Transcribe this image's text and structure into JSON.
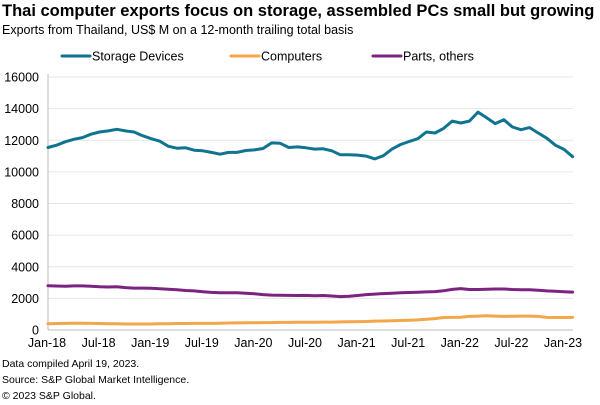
{
  "chart_data": {
    "type": "line",
    "title": "Thai computer exports focus on storage, assembled PCs small but growing",
    "subtitle": "Exports from Thailand, US$ M on a 12-month trailing total basis",
    "xlabel": "",
    "ylabel": "",
    "x_start": "Jan-18",
    "x_end": "Feb-23",
    "x_frequency": "monthly",
    "x_tick_labels": [
      "Jan-18",
      "Jul-18",
      "Jan-19",
      "Jul-19",
      "Jan-20",
      "Jul-20",
      "Jan-21",
      "Jul-21",
      "Jan-22",
      "Jul-22",
      "Jan-23"
    ],
    "y_tick_labels": [
      "0",
      "2000",
      "4000",
      "6000",
      "8000",
      "10000",
      "12000",
      "14000",
      "16000"
    ],
    "ylim": [
      0,
      16000
    ],
    "grid": true,
    "legend_position": "top",
    "series": [
      {
        "name": "Storage Devices",
        "color": "#0e7490",
        "values": [
          11540,
          11690,
          11900,
          12060,
          12170,
          12380,
          12520,
          12590,
          12690,
          12590,
          12520,
          12290,
          12100,
          11940,
          11620,
          11500,
          11520,
          11370,
          11330,
          11230,
          11120,
          11230,
          11230,
          11350,
          11390,
          11480,
          11830,
          11810,
          11540,
          11580,
          11520,
          11440,
          11460,
          11330,
          11080,
          11080,
          11060,
          11000,
          10820,
          11020,
          11440,
          11730,
          11920,
          12100,
          12520,
          12460,
          12750,
          13210,
          13090,
          13210,
          13780,
          13420,
          13050,
          13300,
          12840,
          12670,
          12800,
          12460,
          12130,
          11690,
          11420,
          10960
        ]
      },
      {
        "name": "Computers",
        "color": "#f4a64a",
        "values": [
          400,
          410,
          420,
          430,
          430,
          420,
          410,
          400,
          390,
          380,
          380,
          380,
          380,
          390,
          400,
          410,
          410,
          420,
          420,
          420,
          430,
          440,
          450,
          460,
          460,
          470,
          470,
          480,
          480,
          490,
          490,
          490,
          500,
          500,
          510,
          520,
          530,
          540,
          560,
          570,
          590,
          600,
          620,
          640,
          680,
          720,
          790,
          800,
          810,
          860,
          880,
          900,
          880,
          860,
          870,
          880,
          880,
          860,
          800,
          790,
          790,
          800
        ]
      },
      {
        "name": "Parts, others",
        "color": "#7b2381",
        "values": [
          2800,
          2780,
          2770,
          2790,
          2790,
          2770,
          2740,
          2720,
          2740,
          2680,
          2650,
          2650,
          2640,
          2610,
          2580,
          2540,
          2500,
          2470,
          2420,
          2380,
          2360,
          2360,
          2360,
          2330,
          2290,
          2240,
          2210,
          2200,
          2190,
          2180,
          2190,
          2170,
          2180,
          2150,
          2110,
          2130,
          2180,
          2240,
          2270,
          2300,
          2330,
          2350,
          2370,
          2390,
          2410,
          2430,
          2480,
          2570,
          2620,
          2560,
          2560,
          2580,
          2590,
          2590,
          2560,
          2550,
          2540,
          2520,
          2470,
          2450,
          2420,
          2400
        ]
      }
    ]
  },
  "footer": {
    "compiled": "Data compiled April 19, 2023.",
    "source": "Source: S&P Global Market Intelligence.",
    "copyright": "© 2023 S&P Global."
  }
}
